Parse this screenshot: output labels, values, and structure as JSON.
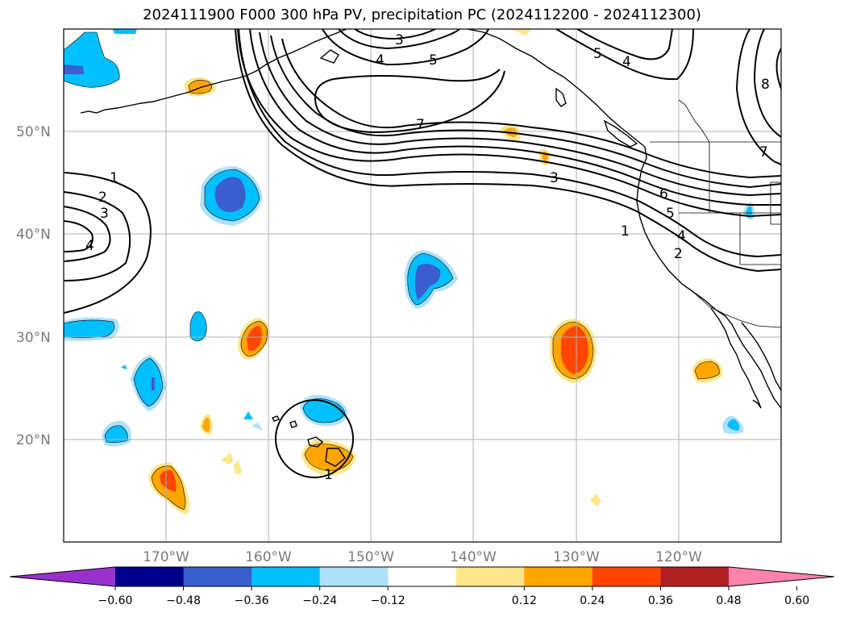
{
  "title": "2024111900 F000 300 hPa PV, precipitation PC (2024112200 - 2024112300)",
  "map": {
    "lat_labels": [
      "50°N",
      "40°N",
      "30°N",
      "20°N"
    ],
    "lon_labels": [
      "170°W",
      "160°W",
      "150°W",
      "140°W",
      "130°W",
      "120°W"
    ],
    "contour_labels": [
      "3",
      "4",
      "5",
      "7",
      "5",
      "4",
      "8",
      "7",
      "1",
      "2",
      "3",
      "4",
      "3",
      "6",
      "5",
      "4",
      "1",
      "2",
      "1"
    ]
  },
  "colorbar": {
    "tick_labels": [
      "−0.60",
      "−0.48",
      "−0.36",
      "−0.24",
      "−0.12",
      "0.12",
      "0.24",
      "0.36",
      "0.48",
      "0.60"
    ],
    "colors": [
      "#9932cc",
      "#00008b",
      "#3a5fcd",
      "#00bfff",
      "#aee0f8",
      "#ffffff",
      "#fde68a",
      "#ffa500",
      "#ff4500",
      "#b22222",
      "#ff82ab"
    ]
  },
  "colors": {
    "frame": "#000000",
    "grid": "#b0b0b0",
    "coast": "#000000"
  }
}
